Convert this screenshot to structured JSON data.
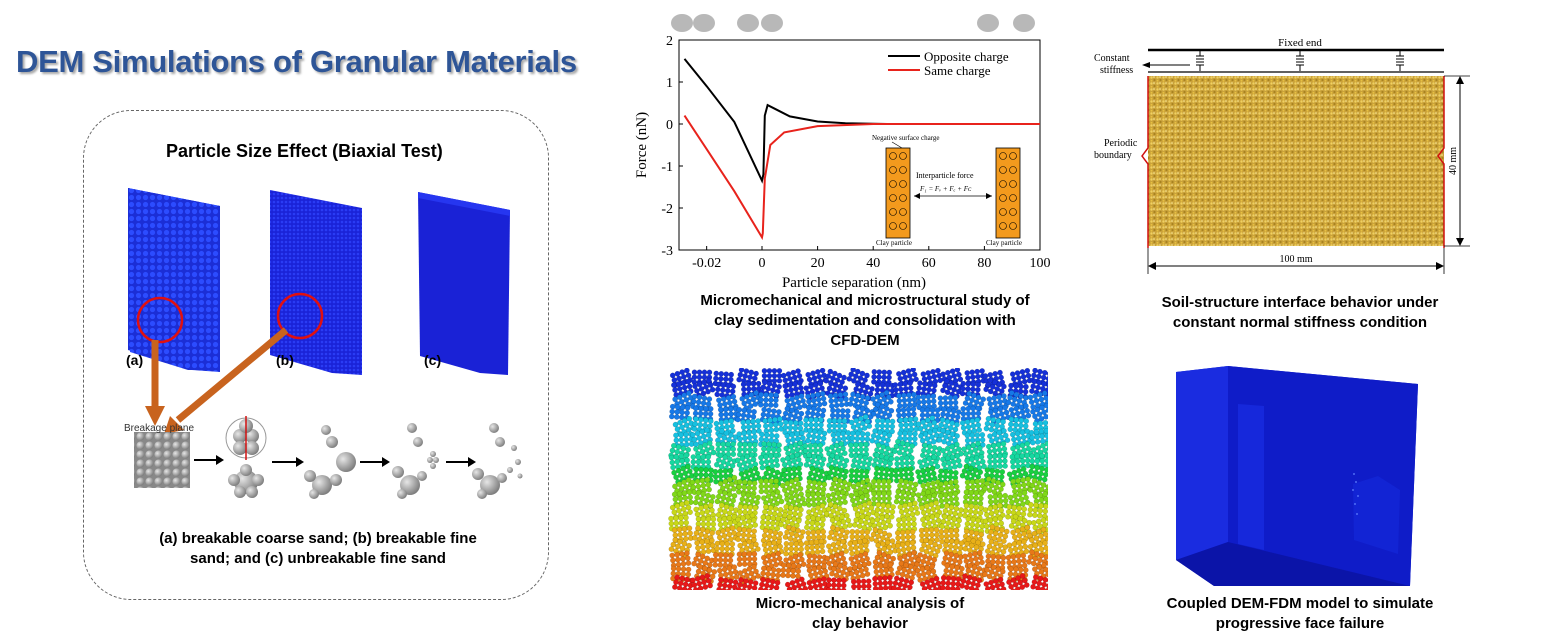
{
  "title": "DEM Simulations of Granular Materials",
  "biaxial": {
    "title": "Particle Size Effect  (Biaxial Test)",
    "labels": [
      "(a)",
      "(b)",
      "(c)"
    ],
    "breakage_plane": "Breakage plane",
    "caption_line1": "(a) breakable coarse sand; (b) breakable fine",
    "caption_line2": "sand; and (c) unbreakable fine sand"
  },
  "force_chart": {
    "caption": [
      "Micromechanical and microstructural study of",
      "clay sedimentation and consolidation with",
      "CFD-DEM"
    ],
    "inset": {
      "negative_charge": "Negative surface charge",
      "interparticle_force": "Interparticle force",
      "equation": "F₁ = Fᵥ + Fₑ + Fᴄ",
      "clay_left": "Clay particle",
      "clay_right": "Clay particle"
    }
  },
  "chart_data": {
    "type": "line",
    "title": "",
    "xlabel": "Particle separation (nm)",
    "ylabel": "Force (nN)",
    "xticks": [
      "-0.02",
      "0",
      "20",
      "40",
      "60",
      "80",
      "100"
    ],
    "ylim": [
      -3,
      2
    ],
    "yticks": [
      "-3",
      "-2",
      "-1",
      "0",
      "1",
      "2"
    ],
    "legend_position": "top-right",
    "series": [
      {
        "name": "Opposite charge",
        "color": "#000000",
        "points": [
          [
            -0.028,
            1.55
          ],
          [
            -0.02,
            0.9
          ],
          [
            -0.01,
            0.05
          ],
          [
            0,
            -1.35
          ],
          [
            0.5,
            -1.2
          ],
          [
            1,
            0.2
          ],
          [
            2,
            0.45
          ],
          [
            5,
            0.35
          ],
          [
            10,
            0.18
          ],
          [
            20,
            0.06
          ],
          [
            30,
            0.02
          ],
          [
            45,
            0.0
          ],
          [
            100,
            0.0
          ]
        ]
      },
      {
        "name": "Same charge",
        "color": "#e8231c",
        "points": [
          [
            -0.028,
            0.2
          ],
          [
            -0.02,
            -0.6
          ],
          [
            -0.01,
            -1.6
          ],
          [
            0,
            -2.7
          ],
          [
            0.3,
            -2.6
          ],
          [
            1,
            -1.3
          ],
          [
            3,
            -0.5
          ],
          [
            8,
            -0.2
          ],
          [
            20,
            -0.05
          ],
          [
            40,
            0.0
          ],
          [
            100,
            0.0
          ]
        ]
      }
    ]
  },
  "interface": {
    "fixed_end": "Fixed end",
    "constant_stiffness": [
      "Constant",
      "stiffness"
    ],
    "periodic_boundary": [
      "Periodic",
      "boundary"
    ],
    "height": "40 mm",
    "width": "100 mm",
    "caption": [
      "Soil-structure interface behavior under",
      "constant normal stiffness condition"
    ]
  },
  "clay": {
    "caption": [
      "Micro-mechanical analysis of",
      "clay behavior"
    ],
    "colors": [
      "#1530d8",
      "#1678e8",
      "#16c0e0",
      "#16d8a0",
      "#18d040",
      "#80d818",
      "#c8d818",
      "#e8b018",
      "#e87818",
      "#e81818"
    ]
  },
  "face_failure": {
    "caption": [
      "Coupled DEM-FDM model to simulate",
      "progressive face failure"
    ]
  }
}
